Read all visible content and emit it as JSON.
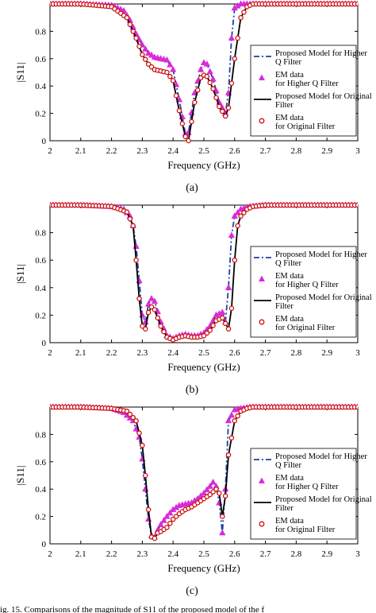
{
  "caption_fragment": "ig. 15.  Comparisons of the magnitude of S11 of the proposed model of the f",
  "chart_data": [
    {
      "type": "line",
      "panel_label": "(a)",
      "xlabel": "Frequency (GHz)",
      "ylabel": "|S11|",
      "xlim": [
        2,
        3
      ],
      "ylim": [
        0,
        1
      ],
      "xticks": [
        "2",
        "2.1",
        "2.2",
        "2.3",
        "2.4",
        "2.5",
        "2.6",
        "2.7",
        "2.8",
        "2.9",
        "3"
      ],
      "yticks": [
        "0",
        "0.2",
        "0.4",
        "0.6",
        "0.8"
      ],
      "legend_position": "right",
      "colors": {
        "higher_model": "#1f3ea8",
        "higher_em": "#d92bd9",
        "original_model": "#000000",
        "original_em": "#cc1111"
      },
      "series": [
        {
          "name": "Proposed Model for Higher Q Filter",
          "style": "dashdot",
          "x": [
            2.0,
            2.1,
            2.2,
            2.24,
            2.26,
            2.28,
            2.3,
            2.32,
            2.34,
            2.36,
            2.38,
            2.4,
            2.42,
            2.44,
            2.45,
            2.47,
            2.49,
            2.5,
            2.51,
            2.53,
            2.55,
            2.57,
            2.58,
            2.59,
            2.6,
            2.62,
            2.65,
            2.7,
            2.8,
            2.9,
            3.0
          ],
          "y": [
            1.0,
            1.0,
            0.99,
            0.95,
            0.88,
            0.78,
            0.7,
            0.64,
            0.61,
            0.6,
            0.59,
            0.52,
            0.3,
            0.05,
            0.06,
            0.35,
            0.52,
            0.57,
            0.56,
            0.45,
            0.28,
            0.2,
            0.35,
            0.75,
            0.97,
            1.0,
            1.0,
            1.0,
            1.0,
            1.0,
            1.0
          ]
        },
        {
          "name": "EM data for Higher Q Filter",
          "style": "triangle",
          "x": [
            2.0,
            2.1,
            2.2,
            2.24,
            2.26,
            2.28,
            2.3,
            2.32,
            2.34,
            2.36,
            2.38,
            2.4,
            2.42,
            2.44,
            2.45,
            2.47,
            2.49,
            2.5,
            2.51,
            2.53,
            2.55,
            2.57,
            2.58,
            2.59,
            2.6,
            2.62,
            2.65,
            2.7,
            2.8,
            2.9,
            3.0
          ],
          "y": [
            1.0,
            1.0,
            0.99,
            0.95,
            0.88,
            0.78,
            0.7,
            0.64,
            0.61,
            0.6,
            0.59,
            0.52,
            0.3,
            0.05,
            0.06,
            0.35,
            0.52,
            0.57,
            0.56,
            0.45,
            0.28,
            0.2,
            0.35,
            0.75,
            0.97,
            1.0,
            1.0,
            1.0,
            1.0,
            1.0,
            1.0
          ]
        },
        {
          "name": "Proposed Model for Original Filter",
          "style": "solid",
          "x": [
            2.0,
            2.1,
            2.2,
            2.25,
            2.28,
            2.3,
            2.32,
            2.34,
            2.36,
            2.38,
            2.4,
            2.42,
            2.44,
            2.45,
            2.47,
            2.49,
            2.5,
            2.51,
            2.53,
            2.55,
            2.57,
            2.58,
            2.6,
            2.62,
            2.64,
            2.66,
            2.7,
            2.8,
            2.9,
            3.0
          ],
          "y": [
            1.0,
            1.0,
            0.98,
            0.9,
            0.75,
            0.63,
            0.56,
            0.52,
            0.51,
            0.5,
            0.44,
            0.22,
            0.03,
            0.0,
            0.28,
            0.46,
            0.48,
            0.47,
            0.38,
            0.25,
            0.18,
            0.24,
            0.6,
            0.9,
            0.98,
            1.0,
            1.0,
            1.0,
            1.0,
            1.0
          ]
        },
        {
          "name": "EM data for Original Filter",
          "style": "circle",
          "x": [
            2.0,
            2.1,
            2.2,
            2.25,
            2.28,
            2.3,
            2.32,
            2.34,
            2.36,
            2.38,
            2.4,
            2.42,
            2.44,
            2.45,
            2.47,
            2.49,
            2.5,
            2.51,
            2.53,
            2.55,
            2.57,
            2.58,
            2.6,
            2.62,
            2.64,
            2.66,
            2.7,
            2.8,
            2.9,
            3.0
          ],
          "y": [
            1.0,
            1.0,
            0.98,
            0.9,
            0.75,
            0.63,
            0.56,
            0.52,
            0.51,
            0.5,
            0.44,
            0.22,
            0.03,
            0.0,
            0.28,
            0.46,
            0.48,
            0.47,
            0.38,
            0.25,
            0.18,
            0.24,
            0.6,
            0.9,
            0.98,
            1.0,
            1.0,
            1.0,
            1.0,
            1.0
          ]
        }
      ]
    },
    {
      "type": "line",
      "panel_label": "(b)",
      "xlabel": "Frequency (GHz)",
      "ylabel": "|S11|",
      "xlim": [
        2,
        3
      ],
      "ylim": [
        0,
        1
      ],
      "xticks": [
        "2",
        "2.1",
        "2.2",
        "2.3",
        "2.4",
        "2.5",
        "2.6",
        "2.7",
        "2.8",
        "2.9",
        "3"
      ],
      "yticks": [
        "0",
        "0.2",
        "0.4",
        "0.6",
        "0.8"
      ],
      "legend_position": "right",
      "colors": {
        "higher_model": "#1f3ea8",
        "higher_em": "#d92bd9",
        "original_model": "#000000",
        "original_em": "#cc1111"
      },
      "series": [
        {
          "name": "Proposed Model for Higher Q Filter",
          "style": "dashdot",
          "x": [
            2.0,
            2.1,
            2.2,
            2.24,
            2.26,
            2.27,
            2.28,
            2.29,
            2.3,
            2.31,
            2.32,
            2.33,
            2.34,
            2.36,
            2.38,
            2.4,
            2.42,
            2.44,
            2.46,
            2.48,
            2.5,
            2.52,
            2.54,
            2.56,
            2.57,
            2.58,
            2.59,
            2.6,
            2.62,
            2.65,
            2.7,
            2.8,
            2.9,
            3.0
          ],
          "y": [
            1.0,
            1.0,
            0.99,
            0.97,
            0.92,
            0.85,
            0.7,
            0.45,
            0.2,
            0.15,
            0.28,
            0.32,
            0.3,
            0.15,
            0.05,
            0.03,
            0.05,
            0.06,
            0.05,
            0.05,
            0.07,
            0.12,
            0.2,
            0.22,
            0.15,
            0.4,
            0.78,
            0.92,
            0.97,
            0.99,
            1.0,
            1.0,
            1.0,
            1.0
          ]
        },
        {
          "name": "EM data for Higher Q Filter",
          "style": "triangle",
          "x": [
            2.0,
            2.1,
            2.2,
            2.24,
            2.26,
            2.27,
            2.28,
            2.29,
            2.3,
            2.31,
            2.32,
            2.33,
            2.34,
            2.36,
            2.38,
            2.4,
            2.42,
            2.44,
            2.46,
            2.48,
            2.5,
            2.52,
            2.54,
            2.56,
            2.57,
            2.58,
            2.59,
            2.6,
            2.62,
            2.65,
            2.7,
            2.8,
            2.9,
            3.0
          ],
          "y": [
            1.0,
            1.0,
            0.99,
            0.97,
            0.92,
            0.85,
            0.7,
            0.45,
            0.2,
            0.15,
            0.28,
            0.32,
            0.3,
            0.15,
            0.05,
            0.03,
            0.05,
            0.06,
            0.05,
            0.05,
            0.07,
            0.12,
            0.2,
            0.22,
            0.15,
            0.4,
            0.78,
            0.92,
            0.97,
            0.99,
            1.0,
            1.0,
            1.0,
            1.0
          ]
        },
        {
          "name": "Proposed Model for Original Filter",
          "style": "solid",
          "x": [
            2.0,
            2.1,
            2.2,
            2.25,
            2.27,
            2.28,
            2.29,
            2.3,
            2.31,
            2.32,
            2.33,
            2.34,
            2.36,
            2.38,
            2.4,
            2.42,
            2.44,
            2.46,
            2.48,
            2.5,
            2.52,
            2.54,
            2.56,
            2.58,
            2.59,
            2.6,
            2.61,
            2.62,
            2.64,
            2.66,
            2.7,
            2.8,
            2.9,
            3.0
          ],
          "y": [
            1.0,
            1.0,
            0.99,
            0.95,
            0.85,
            0.6,
            0.32,
            0.12,
            0.1,
            0.22,
            0.26,
            0.24,
            0.12,
            0.04,
            0.02,
            0.04,
            0.05,
            0.04,
            0.04,
            0.05,
            0.09,
            0.16,
            0.18,
            0.1,
            0.25,
            0.6,
            0.85,
            0.92,
            0.97,
            0.99,
            1.0,
            1.0,
            1.0,
            1.0
          ]
        },
        {
          "name": "EM data for Original Filter",
          "style": "circle",
          "x": [
            2.0,
            2.1,
            2.2,
            2.25,
            2.27,
            2.28,
            2.29,
            2.3,
            2.31,
            2.32,
            2.33,
            2.34,
            2.36,
            2.38,
            2.4,
            2.42,
            2.44,
            2.46,
            2.48,
            2.5,
            2.52,
            2.54,
            2.56,
            2.58,
            2.59,
            2.6,
            2.61,
            2.62,
            2.64,
            2.66,
            2.7,
            2.8,
            2.9,
            3.0
          ],
          "y": [
            1.0,
            1.0,
            0.99,
            0.95,
            0.85,
            0.6,
            0.32,
            0.12,
            0.1,
            0.22,
            0.26,
            0.24,
            0.12,
            0.04,
            0.02,
            0.04,
            0.05,
            0.04,
            0.04,
            0.05,
            0.09,
            0.16,
            0.18,
            0.1,
            0.25,
            0.6,
            0.85,
            0.92,
            0.97,
            0.99,
            1.0,
            1.0,
            1.0,
            1.0
          ]
        }
      ]
    },
    {
      "type": "line",
      "panel_label": "(c)",
      "xlabel": "Frequency (GHz)",
      "ylabel": "|S11|",
      "xlim": [
        2,
        3
      ],
      "ylim": [
        0,
        1
      ],
      "xticks": [
        "2",
        "2.1",
        "2.2",
        "2.3",
        "2.4",
        "2.5",
        "2.6",
        "2.7",
        "2.8",
        "2.9",
        "3"
      ],
      "yticks": [
        "0",
        "0.2",
        "0.4",
        "0.6",
        "0.8"
      ],
      "legend_position": "right",
      "colors": {
        "higher_model": "#1f3ea8",
        "higher_em": "#d92bd9",
        "original_model": "#000000",
        "original_em": "#cc1111"
      },
      "series": [
        {
          "name": "Proposed Model for Higher Q Filter",
          "style": "dashdot",
          "x": [
            2.0,
            2.1,
            2.2,
            2.24,
            2.27,
            2.29,
            2.3,
            2.31,
            2.32,
            2.33,
            2.34,
            2.35,
            2.36,
            2.38,
            2.4,
            2.42,
            2.44,
            2.46,
            2.48,
            2.5,
            2.52,
            2.53,
            2.54,
            2.55,
            2.56,
            2.57,
            2.58,
            2.6,
            2.62,
            2.65,
            2.7,
            2.8,
            2.9,
            3.0
          ],
          "y": [
            1.0,
            1.0,
            0.99,
            0.96,
            0.9,
            0.78,
            0.62,
            0.4,
            0.18,
            0.06,
            0.05,
            0.1,
            0.14,
            0.2,
            0.25,
            0.28,
            0.29,
            0.3,
            0.33,
            0.37,
            0.42,
            0.45,
            0.42,
            0.3,
            0.08,
            0.4,
            0.9,
            0.98,
            0.99,
            1.0,
            1.0,
            1.0,
            1.0,
            1.0
          ]
        },
        {
          "name": "EM data for Higher Q Filter",
          "style": "triangle",
          "x": [
            2.0,
            2.1,
            2.2,
            2.24,
            2.27,
            2.29,
            2.3,
            2.31,
            2.32,
            2.33,
            2.34,
            2.35,
            2.36,
            2.38,
            2.4,
            2.42,
            2.44,
            2.46,
            2.48,
            2.5,
            2.52,
            2.53,
            2.54,
            2.55,
            2.56,
            2.57,
            2.58,
            2.6,
            2.62,
            2.65,
            2.7,
            2.8,
            2.9,
            3.0
          ],
          "y": [
            1.0,
            1.0,
            0.99,
            0.96,
            0.9,
            0.78,
            0.62,
            0.4,
            0.18,
            0.06,
            0.05,
            0.1,
            0.14,
            0.2,
            0.25,
            0.28,
            0.29,
            0.3,
            0.33,
            0.37,
            0.42,
            0.45,
            0.42,
            0.3,
            0.08,
            0.4,
            0.9,
            0.98,
            0.99,
            1.0,
            1.0,
            1.0,
            1.0,
            1.0
          ]
        },
        {
          "name": "Proposed Model for Original Filter",
          "style": "solid",
          "x": [
            2.0,
            2.1,
            2.2,
            2.25,
            2.28,
            2.3,
            2.31,
            2.32,
            2.33,
            2.34,
            2.35,
            2.36,
            2.38,
            2.4,
            2.42,
            2.44,
            2.46,
            2.48,
            2.5,
            2.52,
            2.54,
            2.55,
            2.56,
            2.57,
            2.58,
            2.6,
            2.62,
            2.64,
            2.66,
            2.7,
            2.8,
            2.9,
            3.0
          ],
          "y": [
            1.0,
            1.0,
            0.99,
            0.97,
            0.9,
            0.72,
            0.5,
            0.25,
            0.05,
            0.04,
            0.08,
            0.09,
            0.12,
            0.18,
            0.22,
            0.25,
            0.27,
            0.3,
            0.33,
            0.36,
            0.4,
            0.37,
            0.2,
            0.35,
            0.65,
            0.9,
            0.97,
            0.99,
            1.0,
            1.0,
            1.0,
            1.0,
            1.0
          ]
        },
        {
          "name": "EM data for Original Filter",
          "style": "circle",
          "x": [
            2.0,
            2.1,
            2.2,
            2.25,
            2.28,
            2.3,
            2.31,
            2.32,
            2.33,
            2.34,
            2.35,
            2.36,
            2.38,
            2.4,
            2.42,
            2.44,
            2.46,
            2.48,
            2.5,
            2.52,
            2.54,
            2.55,
            2.56,
            2.57,
            2.58,
            2.6,
            2.62,
            2.64,
            2.66,
            2.7,
            2.8,
            2.9,
            3.0
          ],
          "y": [
            1.0,
            1.0,
            0.99,
            0.97,
            0.9,
            0.72,
            0.5,
            0.25,
            0.05,
            0.04,
            0.08,
            0.09,
            0.12,
            0.18,
            0.22,
            0.25,
            0.27,
            0.3,
            0.33,
            0.36,
            0.4,
            0.37,
            0.2,
            0.35,
            0.65,
            0.9,
            0.97,
            0.99,
            1.0,
            1.0,
            1.0,
            1.0,
            1.0
          ]
        }
      ]
    }
  ]
}
